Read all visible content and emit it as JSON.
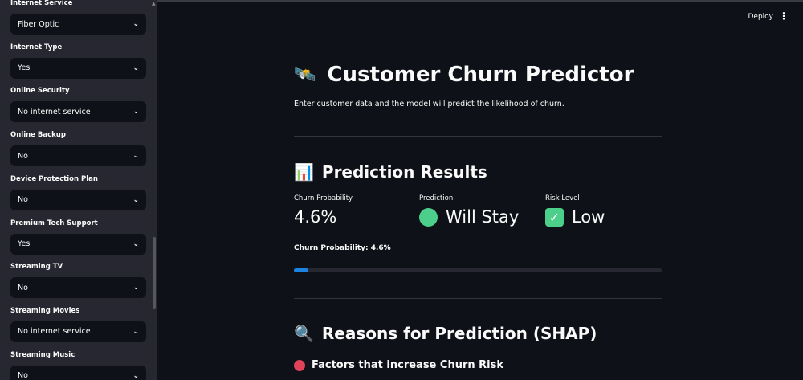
{
  "sidebar": {
    "fields": [
      {
        "label": "Internet Service",
        "value": "Fiber Optic"
      },
      {
        "label": "Internet Type",
        "value": "Yes"
      },
      {
        "label": "Online Security",
        "value": "No internet service"
      },
      {
        "label": "Online Backup",
        "value": "No"
      },
      {
        "label": "Device Protection Plan",
        "value": "No"
      },
      {
        "label": "Premium Tech Support",
        "value": "Yes"
      },
      {
        "label": "Streaming TV",
        "value": "No"
      },
      {
        "label": "Streaming Movies",
        "value": "No internet service"
      },
      {
        "label": "Streaming Music",
        "value": "No"
      }
    ]
  },
  "header": {
    "deploy_label": "Deploy",
    "menu_icon": "⋮"
  },
  "main": {
    "title": "Customer Churn Predictor",
    "title_icon": "🛰️",
    "subtitle": "Enter customer data and the model will predict the likelihood of churn.",
    "results_heading": "Prediction Results",
    "results_icon": "📊",
    "metrics": [
      {
        "label": "Churn Probability",
        "value": "4.6%"
      },
      {
        "label": "Prediction",
        "value": "Will Stay",
        "icon": "green-circle"
      },
      {
        "label": "Risk Level",
        "value": "Low",
        "icon": "check-mark"
      }
    ],
    "progress_label": "Churn Probability: 4.6%",
    "progress_percent": 4.6,
    "reasons_heading": "Reasons for Prediction (SHAP)",
    "reasons_icon": "🔍",
    "factors_label": "Factors that increase Churn Risk",
    "colors": {
      "progress": "#1c83e1",
      "stay": "#4ccf8a",
      "risk": "#e0425a"
    }
  }
}
